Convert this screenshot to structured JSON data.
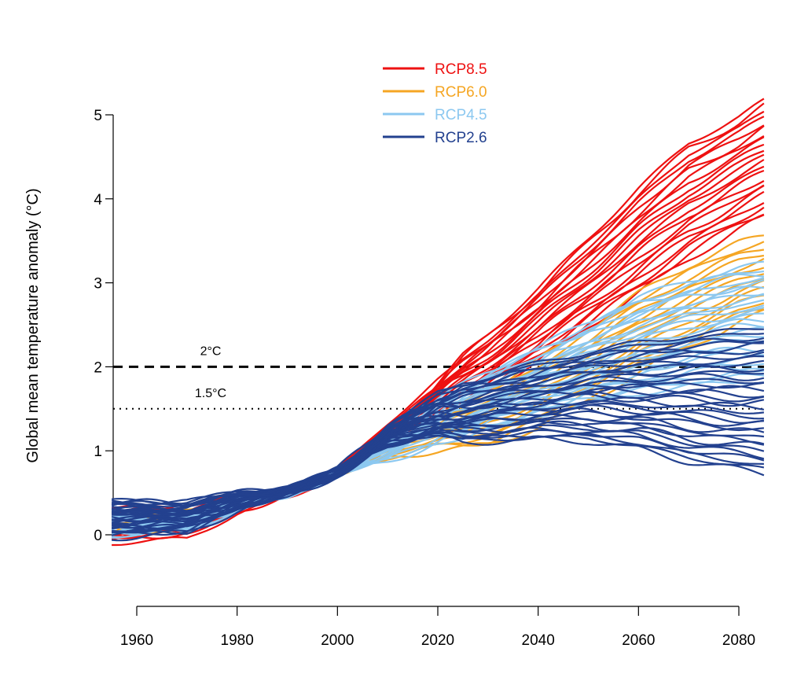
{
  "chart_data": {
    "type": "line",
    "title": "",
    "xlabel": "",
    "ylabel": "Global mean temperature anomaly (°C)",
    "xlim": [
      1955,
      2085
    ],
    "ylim": [
      -0.1,
      5.2
    ],
    "x_ticks": [
      "1960",
      "1980",
      "2000",
      "2020",
      "2040",
      "2060",
      "2080"
    ],
    "y_ticks": [
      "0",
      "1",
      "2",
      "3",
      "4",
      "5"
    ],
    "grid": false,
    "legend_position": "top-center",
    "colors": {
      "RCP8.5": "#ee1111",
      "RCP6.0": "#f5a623",
      "RCP4.5": "#8cc8f0",
      "RCP2.6": "#23418f"
    },
    "thresholds": [
      {
        "label": "2°C",
        "value": 2.0,
        "style": "dashed"
      },
      {
        "label": "1.5°C",
        "value": 1.5,
        "style": "dotted"
      }
    ],
    "series": [
      {
        "name": "RCP8.5",
        "x": [
          1955,
          1970,
          1980,
          1990,
          2000,
          2010,
          2020,
          2030,
          2040,
          2050,
          2060,
          2070,
          2080,
          2085
        ],
        "low": [
          -0.1,
          -0.05,
          0.25,
          0.45,
          0.7,
          1.05,
          1.35,
          1.7,
          2.05,
          2.45,
          2.85,
          3.25,
          3.6,
          3.75
        ],
        "high": [
          0.3,
          0.32,
          0.45,
          0.52,
          0.76,
          1.35,
          1.9,
          2.4,
          2.95,
          3.55,
          4.15,
          4.7,
          5.0,
          5.2
        ],
        "count": 22
      },
      {
        "name": "RCP6.0",
        "x": [
          1955,
          1970,
          1980,
          1990,
          2000,
          2010,
          2020,
          2030,
          2040,
          2050,
          2060,
          2070,
          2080,
          2085
        ],
        "low": [
          0.0,
          0.05,
          0.3,
          0.48,
          0.7,
          0.85,
          0.95,
          1.05,
          1.25,
          1.55,
          1.9,
          2.2,
          2.5,
          2.6
        ],
        "high": [
          0.25,
          0.28,
          0.42,
          0.52,
          0.76,
          1.15,
          1.45,
          1.75,
          2.1,
          2.5,
          2.9,
          3.25,
          3.5,
          3.6
        ],
        "count": 14
      },
      {
        "name": "RCP4.5",
        "x": [
          1955,
          1970,
          1980,
          1990,
          2000,
          2010,
          2020,
          2030,
          2040,
          2050,
          2060,
          2070,
          2080,
          2085
        ],
        "low": [
          0.0,
          0.05,
          0.3,
          0.48,
          0.7,
          0.85,
          1.05,
          1.25,
          1.4,
          1.55,
          1.65,
          1.75,
          1.8,
          1.8
        ],
        "high": [
          0.3,
          0.3,
          0.45,
          0.52,
          0.78,
          1.25,
          1.65,
          1.95,
          2.25,
          2.55,
          2.85,
          3.05,
          3.2,
          3.25
        ],
        "count": 26
      },
      {
        "name": "RCP2.6",
        "x": [
          1955,
          1970,
          1980,
          1990,
          2000,
          2010,
          2020,
          2030,
          2040,
          2050,
          2060,
          2070,
          2080,
          2085
        ],
        "low": [
          -0.05,
          0.0,
          0.28,
          0.48,
          0.68,
          0.95,
          1.08,
          1.1,
          1.12,
          1.1,
          1.0,
          0.85,
          0.75,
          0.7
        ],
        "high": [
          0.4,
          0.4,
          0.5,
          0.55,
          0.78,
          1.4,
          1.75,
          1.9,
          2.05,
          2.2,
          2.3,
          2.4,
          2.45,
          2.5
        ],
        "count": 34
      }
    ]
  }
}
